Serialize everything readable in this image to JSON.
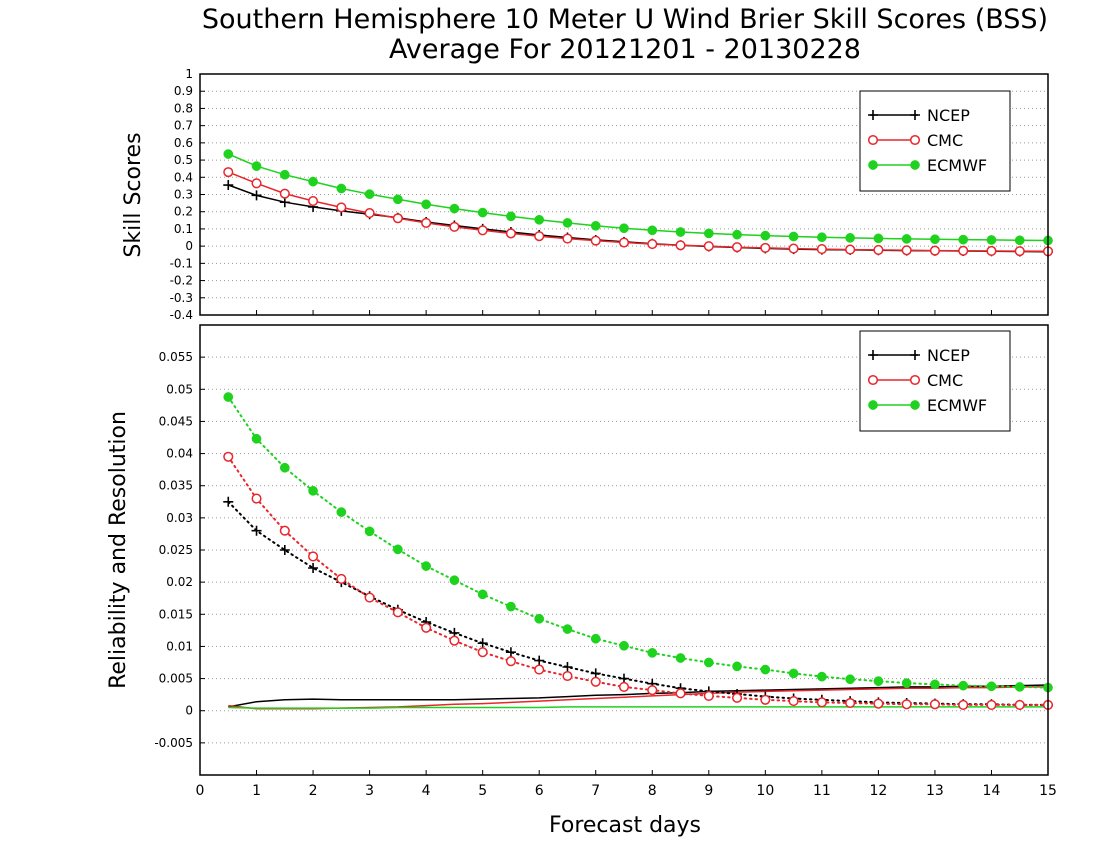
{
  "chart_data": {
    "title": "Southern Hemisphere 10 Meter U Wind Brier Skill Scores (BSS)",
    "subtitle": "Average For 20121201 - 20130228",
    "xlabel": "Forecast days",
    "x_ticks": [
      "0",
      "1",
      "2",
      "3",
      "4",
      "5",
      "6",
      "7",
      "8",
      "9",
      "10",
      "11",
      "12",
      "13",
      "14",
      "15"
    ],
    "xlim": [
      0,
      15
    ],
    "x": [
      0.5,
      1,
      1.5,
      2,
      2.5,
      3,
      3.5,
      4,
      4.5,
      5,
      5.5,
      6,
      6.5,
      7,
      7.5,
      8,
      8.5,
      9,
      9.5,
      10,
      10.5,
      11,
      11.5,
      12,
      12.5,
      13,
      13.5,
      14,
      14.5,
      15
    ],
    "colors": {
      "NCEP": "#000000",
      "CMC": "#e8262b",
      "ECMWF": "#1ed21e"
    },
    "panels": [
      {
        "type": "line",
        "ylabel": "Skill Scores",
        "ylim": [
          -0.4,
          1
        ],
        "y_ticks": [
          "-0.4",
          "-0.3",
          "-0.2",
          "-0.1",
          "0",
          "0.1",
          "0.2",
          "0.3",
          "0.4",
          "0.5",
          "0.6",
          "0.7",
          "0.8",
          "0.9",
          "1"
        ],
        "grid": "horizontal dotted",
        "legend": {
          "position": "top-right",
          "entries": [
            "NCEP",
            "CMC",
            "ECMWF"
          ]
        },
        "series": [
          {
            "name": "NCEP",
            "style": "solid",
            "marker": "plus",
            "values": [
              0.355,
              0.295,
              0.255,
              0.228,
              0.205,
              0.185,
              0.165,
              0.14,
              0.12,
              0.1,
              0.082,
              0.065,
              0.05,
              0.036,
              0.025,
              0.014,
              0.005,
              -0.002,
              -0.008,
              -0.013,
              -0.017,
              -0.02,
              -0.022,
              -0.024,
              -0.026,
              -0.027,
              -0.028,
              -0.03,
              -0.031,
              -0.032
            ]
          },
          {
            "name": "CMC",
            "style": "solid",
            "marker": "open-circle",
            "values": [
              0.43,
              0.365,
              0.305,
              0.262,
              0.225,
              0.192,
              0.162,
              0.135,
              0.112,
              0.092,
              0.074,
              0.058,
              0.044,
              0.032,
              0.021,
              0.012,
              0.005,
              0.0,
              -0.006,
              -0.01,
              -0.014,
              -0.017,
              -0.02,
              -0.022,
              -0.024,
              -0.026,
              -0.027,
              -0.028,
              -0.029,
              -0.03
            ]
          },
          {
            "name": "ECMWF",
            "style": "solid",
            "marker": "filled-circle",
            "values": [
              0.535,
              0.465,
              0.415,
              0.375,
              0.335,
              0.302,
              0.272,
              0.243,
              0.218,
              0.195,
              0.173,
              0.153,
              0.135,
              0.118,
              0.104,
              0.092,
              0.082,
              0.074,
              0.067,
              0.061,
              0.056,
              0.052,
              0.048,
              0.045,
              0.042,
              0.04,
              0.038,
              0.036,
              0.034,
              0.033
            ]
          }
        ]
      },
      {
        "type": "line",
        "ylabel": "Reliability and Resolution",
        "ylim": [
          -0.01,
          0.06
        ],
        "y_ticks": [
          "-0.005",
          "0",
          "0.005",
          "0.01",
          "0.015",
          "0.02",
          "0.025",
          "0.03",
          "0.035",
          "0.04",
          "0.045",
          "0.05",
          "0.055"
        ],
        "grid": "horizontal dotted",
        "legend": {
          "position": "top-right",
          "entries": [
            "NCEP",
            "CMC",
            "ECMWF"
          ]
        },
        "series": [
          {
            "name": "NCEP",
            "style": "solid",
            "marker": "none",
            "values": [
              0.0006,
              0.0014,
              0.0017,
              0.0018,
              0.0017,
              0.0017,
              0.0017,
              0.0017,
              0.0017,
              0.0018,
              0.0019,
              0.002,
              0.0022,
              0.0024,
              0.0025,
              0.0027,
              0.0028,
              0.003,
              0.0031,
              0.0032,
              0.0033,
              0.0034,
              0.0035,
              0.0036,
              0.0037,
              0.0037,
              0.0038,
              0.0038,
              0.0039,
              0.004
            ]
          },
          {
            "name": "CMC",
            "style": "solid",
            "marker": "none",
            "values": [
              0.0008,
              0.0003,
              0.0003,
              0.0003,
              0.0004,
              0.0005,
              0.0006,
              0.0008,
              0.001,
              0.0011,
              0.0013,
              0.0015,
              0.0017,
              0.0019,
              0.0021,
              0.0023,
              0.0025,
              0.0027,
              0.0029,
              0.003,
              0.0031,
              0.0032,
              0.0033,
              0.0034,
              0.0035,
              0.0035,
              0.0036,
              0.0036,
              0.0037,
              0.0037
            ]
          },
          {
            "name": "ECMWF",
            "style": "solid",
            "marker": "none",
            "values": [
              0.0005,
              0.0004,
              0.0004,
              0.0004,
              0.0004,
              0.0004,
              0.0005,
              0.0005,
              0.0005,
              0.0005,
              0.0005,
              0.0005,
              0.0006,
              0.0006,
              0.0006,
              0.0006,
              0.0006,
              0.0006,
              0.0006,
              0.0006,
              0.0006,
              0.0006,
              0.0006,
              0.0006,
              0.0006,
              0.0006,
              0.0006,
              0.0006,
              0.0006,
              0.0006
            ]
          },
          {
            "name": "NCEP",
            "style": "dotted",
            "marker": "plus",
            "values": [
              0.0325,
              0.028,
              0.025,
              0.0222,
              0.02,
              0.0178,
              0.0157,
              0.0138,
              0.0121,
              0.0105,
              0.0091,
              0.0078,
              0.0068,
              0.0058,
              0.005,
              0.0042,
              0.0035,
              0.003,
              0.0026,
              0.0022,
              0.0019,
              0.0017,
              0.0015,
              0.0013,
              0.0012,
              0.0011,
              0.001,
              0.001,
              0.0009,
              0.0009
            ]
          },
          {
            "name": "CMC",
            "style": "dotted",
            "marker": "open-circle",
            "values": [
              0.0395,
              0.033,
              0.028,
              0.024,
              0.0205,
              0.0176,
              0.0153,
              0.0129,
              0.0109,
              0.0091,
              0.0077,
              0.0064,
              0.0054,
              0.0045,
              0.0037,
              0.0032,
              0.0027,
              0.0023,
              0.002,
              0.0017,
              0.0015,
              0.0013,
              0.0012,
              0.0011,
              0.001,
              0.001,
              0.0009,
              0.0009,
              0.0009,
              0.0009
            ]
          },
          {
            "name": "ECMWF",
            "style": "dotted",
            "marker": "filled-circle",
            "values": [
              0.0488,
              0.0423,
              0.0378,
              0.0342,
              0.0309,
              0.0279,
              0.0251,
              0.0225,
              0.0203,
              0.0181,
              0.0162,
              0.0143,
              0.0127,
              0.0112,
              0.0101,
              0.009,
              0.0082,
              0.0075,
              0.0069,
              0.0064,
              0.0058,
              0.0053,
              0.0049,
              0.0046,
              0.0043,
              0.0041,
              0.0039,
              0.0038,
              0.0037,
              0.0036
            ]
          }
        ]
      }
    ]
  }
}
